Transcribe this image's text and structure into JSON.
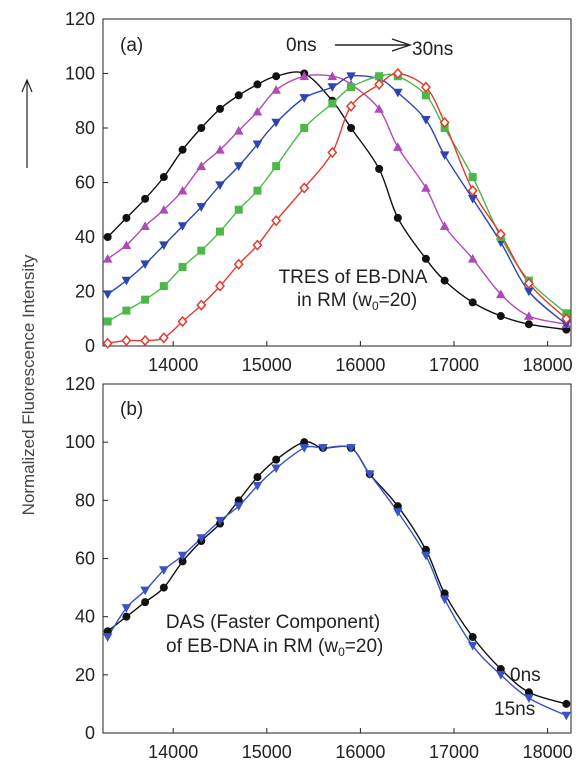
{
  "figure": {
    "ylabel": "Normalized Fluorescence Intensity"
  },
  "chart_data": [
    {
      "type": "scatter",
      "panel_label": "(a)",
      "xlim": [
        13250,
        18250
      ],
      "ylim": [
        0,
        120
      ],
      "xticks": [
        "14000",
        "15000",
        "16000",
        "17000",
        "18000"
      ],
      "yticks": [
        "0",
        "20",
        "40",
        "60",
        "80",
        "100",
        "120"
      ],
      "annotation": [
        "TRES of EB-DNA",
        "in RM (w",
        "0",
        "=20)"
      ],
      "arrow_label_start": "0ns",
      "arrow_label_end": "30ns",
      "legend": "none",
      "grid": false,
      "series": [
        {
          "color": "#111111",
          "marker": "circle",
          "x": [
            13300,
            13500,
            13700,
            13900,
            14100,
            14300,
            14500,
            14700,
            14900,
            15100,
            15400,
            15700,
            15900,
            16200,
            16400,
            16700,
            16900,
            17200,
            17500,
            17800,
            18200
          ],
          "y": [
            40,
            47,
            54,
            62,
            72,
            80,
            87,
            92,
            96,
            99,
            100,
            90,
            80,
            65,
            47,
            32,
            24,
            16,
            11,
            8,
            6
          ]
        },
        {
          "color": "#b04ab8",
          "marker": "triangle-up",
          "x": [
            13300,
            13500,
            13700,
            13900,
            14100,
            14300,
            14500,
            14700,
            14900,
            15100,
            15400,
            15700,
            15900,
            16200,
            16400,
            16700,
            16900,
            17200,
            17500,
            17800,
            18200
          ],
          "y": [
            32,
            37,
            44,
            50,
            57,
            66,
            72,
            79,
            86,
            94,
            99,
            99,
            96,
            87,
            73,
            58,
            44,
            32,
            19,
            11,
            8
          ]
        },
        {
          "color": "#2d44b2",
          "marker": "triangle-down",
          "x": [
            13300,
            13500,
            13700,
            13900,
            14100,
            14300,
            14500,
            14700,
            14900,
            15100,
            15400,
            15700,
            15900,
            16200,
            16400,
            16700,
            16900,
            17200,
            17500,
            17800,
            18200
          ],
          "y": [
            19,
            24,
            30,
            37,
            44,
            51,
            59,
            66,
            74,
            82,
            91,
            95,
            99,
            98,
            93,
            83,
            70,
            54,
            38,
            20,
            8
          ]
        },
        {
          "color": "#4db848",
          "marker": "square",
          "x": [
            13300,
            13500,
            13700,
            13900,
            14100,
            14300,
            14500,
            14700,
            14900,
            15100,
            15400,
            15700,
            15900,
            16200,
            16400,
            16700,
            16900,
            17200,
            17500,
            17800,
            18200
          ],
          "y": [
            9,
            13,
            17,
            22,
            29,
            35,
            42,
            50,
            57,
            66,
            80,
            89,
            95,
            99,
            99,
            92,
            80,
            62,
            40,
            24,
            12
          ]
        },
        {
          "color": "#e23a2e",
          "marker": "diamond-open",
          "x": [
            13300,
            13500,
            13700,
            13900,
            14100,
            14300,
            14500,
            14700,
            14900,
            15100,
            15400,
            15700,
            15900,
            16200,
            16400,
            16700,
            16900,
            17200,
            17500,
            17800,
            18200
          ],
          "y": [
            1,
            2,
            2,
            3,
            9,
            15,
            22,
            30,
            37,
            46,
            58,
            71,
            88,
            96,
            100,
            95,
            82,
            57,
            41,
            23,
            10
          ]
        }
      ]
    },
    {
      "type": "scatter",
      "panel_label": "(b)",
      "xlim": [
        13250,
        18250
      ],
      "ylim": [
        0,
        120
      ],
      "xticks": [
        "14000",
        "15000",
        "16000",
        "17000",
        "18000"
      ],
      "yticks": [
        "0",
        "20",
        "40",
        "60",
        "80",
        "100",
        "120"
      ],
      "annotation": [
        "DAS (Faster Component)",
        "of EB-DNA  in RM (w",
        "0",
        "=20)"
      ],
      "legend": "none",
      "grid": false,
      "series": [
        {
          "name": "0ns",
          "color": "#111111",
          "marker": "circle",
          "x": [
            13300,
            13500,
            13700,
            13900,
            14100,
            14300,
            14500,
            14700,
            14900,
            15100,
            15400,
            15600,
            15900,
            16100,
            16400,
            16700,
            16900,
            17200,
            17500,
            17800,
            18200
          ],
          "y": [
            35,
            40,
            45,
            50,
            59,
            66,
            72,
            80,
            88,
            94,
            100,
            98,
            98,
            89,
            78,
            63,
            48,
            33,
            22,
            14,
            10
          ]
        },
        {
          "name": "15ns",
          "color": "#3a52c4",
          "marker": "triangle-down",
          "x": [
            13300,
            13500,
            13700,
            13900,
            14100,
            14300,
            14500,
            14700,
            14900,
            15100,
            15400,
            15600,
            15900,
            16100,
            16400,
            16700,
            16900,
            17200,
            17500,
            17800,
            18200
          ],
          "y": [
            33,
            43,
            49,
            56,
            61,
            67,
            73,
            78,
            85,
            91,
            98,
            98,
            98,
            89,
            76,
            61,
            46,
            30,
            20,
            12,
            6
          ]
        }
      ]
    }
  ]
}
